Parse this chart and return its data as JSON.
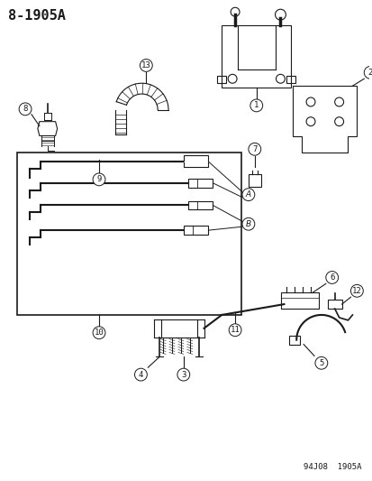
{
  "title": "8-1905A",
  "footer": "94J08  1905A",
  "bg_color": "#ffffff",
  "line_color": "#1a1a1a",
  "title_fontsize": 11,
  "footer_fontsize": 6.5,
  "fig_width": 4.14,
  "fig_height": 5.33,
  "dpi": 100
}
